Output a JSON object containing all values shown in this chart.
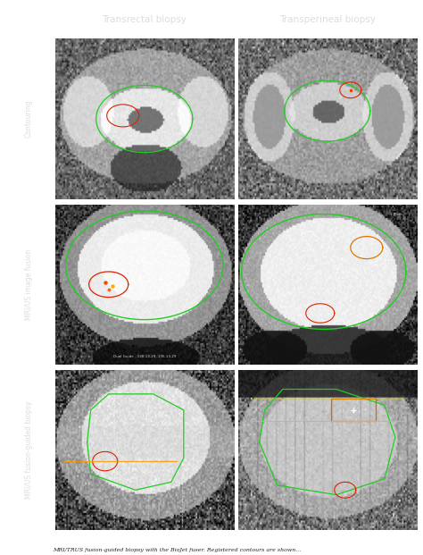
{
  "title_left": "Transrectal biopsy",
  "title_right": "Transperineal biopsy",
  "row_labels": [
    "Contouring",
    "MRI/US image fusion",
    "MRI/US fusion-guided biopsy"
  ],
  "figure_bg": "#ffffff",
  "outer_bg": "#1a1a1a",
  "panel_border": "#aaaaaa",
  "caption": "MRI/TRUS fusion-guided biopsy with the BioJet fuser. Registered contours are shown",
  "green": "#22cc22",
  "red": "#dd2200",
  "orange": "#dd6600",
  "white": "#ffffff"
}
